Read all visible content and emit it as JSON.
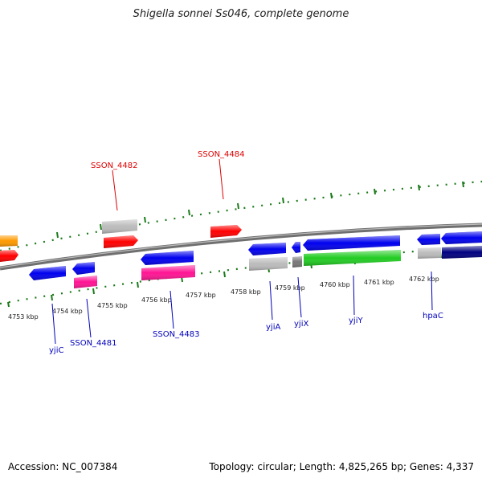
{
  "title": "Shigella sonnei Ss046, complete genome",
  "footer": {
    "accession": "Accession: NC_007384",
    "summary": "Topology: circular; Length: 4,825,265 bp; Genes: 4,337"
  },
  "colors": {
    "backbone": "#808080",
    "ticks": "#1a7a1a",
    "label_forward": "#dd0000",
    "label_reverse": "#0000bb",
    "label_line_forward": "#dd0000",
    "label_line_reverse": "#0000bb"
  },
  "scale_marks": [
    {
      "text": "4753 kbp"
    },
    {
      "text": "4754 kbp"
    },
    {
      "text": "4755 kbp"
    },
    {
      "text": "4756 kbp"
    },
    {
      "text": "4757 kbp"
    },
    {
      "text": "4758 kbp"
    },
    {
      "text": "4759 kbp"
    },
    {
      "text": "4760 kbp"
    },
    {
      "text": "4761 kbp"
    },
    {
      "text": "4762 kbp"
    }
  ],
  "gene_labels": [
    {
      "text": "SSON_4482",
      "strand": "forward"
    },
    {
      "text": "SSON_4484",
      "strand": "forward"
    },
    {
      "text": "yjiC",
      "strand": "reverse"
    },
    {
      "text": "SSON_4481",
      "strand": "reverse"
    },
    {
      "text": "SSON_4483",
      "strand": "reverse"
    },
    {
      "text": "yjiA",
      "strand": "reverse"
    },
    {
      "text": "yjiX",
      "strand": "reverse"
    },
    {
      "text": "yjiY",
      "strand": "reverse"
    },
    {
      "text": "hpaC",
      "strand": "reverse"
    }
  ],
  "features": [
    {
      "name": "orange-gene",
      "color": "#ff9900",
      "type": "gene"
    },
    {
      "name": "red-gene-left",
      "color": "#ff0000",
      "type": "gene"
    },
    {
      "name": "SSON_4482-gray",
      "color": "#bbbbbb",
      "type": "gene"
    },
    {
      "name": "SSON_4482-red",
      "color": "#ff0000",
      "type": "CDS"
    },
    {
      "name": "SSON_4484-red",
      "color": "#ff0000",
      "type": "CDS"
    },
    {
      "name": "yjiC-blue",
      "color": "#0000ee",
      "type": "CDS"
    },
    {
      "name": "SSON_4481-blue",
      "color": "#0000ee",
      "type": "CDS"
    },
    {
      "name": "SSON_4481-pink",
      "color": "#ff1493",
      "type": "pseudogene"
    },
    {
      "name": "SSON_4483-blue",
      "color": "#0000ee",
      "type": "CDS"
    },
    {
      "name": "SSON_4483-pink",
      "color": "#ff1493",
      "type": "pseudogene"
    },
    {
      "name": "yjiA-blue",
      "color": "#0000ee",
      "type": "CDS"
    },
    {
      "name": "yjiA-gray",
      "color": "#bbbbbb",
      "type": "gene"
    },
    {
      "name": "yjiX-blue",
      "color": "#0000ee",
      "type": "CDS"
    },
    {
      "name": "yjiX-gray",
      "color": "#777777",
      "type": "gene"
    },
    {
      "name": "yjiY-blue",
      "color": "#0000ee",
      "type": "CDS"
    },
    {
      "name": "yjiY-green",
      "color": "#22cc22",
      "type": "gene"
    },
    {
      "name": "hpaC-blue",
      "color": "#0000ee",
      "type": "CDS"
    },
    {
      "name": "hpaC-gray",
      "color": "#bbbbbb",
      "type": "gene"
    },
    {
      "name": "right-blue",
      "color": "#0000ee",
      "type": "CDS"
    },
    {
      "name": "right-navy",
      "color": "#000080",
      "type": "gene"
    }
  ]
}
